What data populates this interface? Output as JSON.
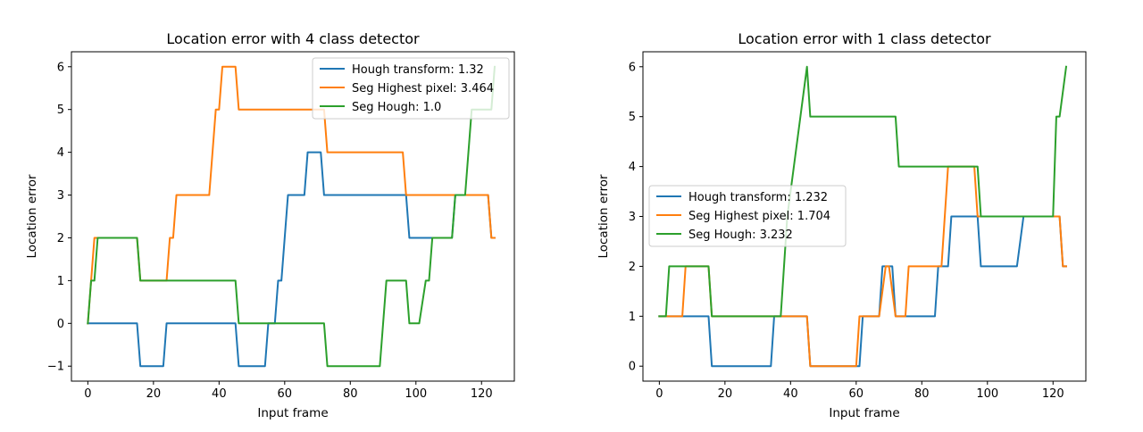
{
  "chart_data": [
    {
      "type": "line",
      "title": "Location error with 4 class detector",
      "xlabel": "Input frame",
      "ylabel": "Location error",
      "xlim": [
        -5,
        130
      ],
      "ylim": [
        -1.35,
        6.35
      ],
      "xticks": [
        0,
        20,
        40,
        60,
        80,
        100,
        120
      ],
      "yticks": [
        -1,
        0,
        1,
        2,
        3,
        4,
        5,
        6
      ],
      "legend_position": "top-right",
      "grid": false,
      "series": [
        {
          "name": "Hough transform: 1.32",
          "color": "#1f77b4",
          "points": [
            [
              0,
              0
            ],
            [
              15,
              0
            ],
            [
              16,
              -1
            ],
            [
              23,
              -1
            ],
            [
              24,
              0
            ],
            [
              45,
              0
            ],
            [
              46,
              -1
            ],
            [
              54,
              -1
            ],
            [
              55,
              0
            ],
            [
              57,
              0
            ],
            [
              58,
              1
            ],
            [
              59,
              1
            ],
            [
              61,
              3
            ],
            [
              66,
              3
            ],
            [
              67,
              4
            ],
            [
              71,
              4
            ],
            [
              72,
              3
            ],
            [
              97,
              3
            ],
            [
              98,
              2
            ],
            [
              104,
              2
            ],
            [
              105,
              2
            ],
            [
              111,
              2
            ],
            [
              112,
              3
            ],
            [
              122,
              3
            ],
            [
              123,
              2
            ],
            [
              124,
              2
            ]
          ]
        },
        {
          "name": "Seg Highest pixel: 3.464",
          "color": "#ff7f0e",
          "points": [
            [
              0,
              0
            ],
            [
              2,
              2
            ],
            [
              15,
              2
            ],
            [
              16,
              1
            ],
            [
              24,
              1
            ],
            [
              25,
              2
            ],
            [
              26,
              2
            ],
            [
              27,
              3
            ],
            [
              37,
              3
            ],
            [
              39,
              5
            ],
            [
              40,
              5
            ],
            [
              41,
              6
            ],
            [
              45,
              6
            ],
            [
              46,
              5
            ],
            [
              72,
              5
            ],
            [
              73,
              4
            ],
            [
              96,
              4
            ],
            [
              97,
              3
            ],
            [
              122,
              3
            ],
            [
              123,
              2
            ],
            [
              124,
              2
            ]
          ]
        },
        {
          "name": "Seg Hough: 1.0",
          "color": "#2ca02c",
          "points": [
            [
              0,
              0
            ],
            [
              1,
              1
            ],
            [
              2,
              1
            ],
            [
              3,
              2
            ],
            [
              15,
              2
            ],
            [
              16,
              1
            ],
            [
              45,
              1
            ],
            [
              46,
              0
            ],
            [
              72,
              0
            ],
            [
              73,
              -1
            ],
            [
              89,
              -1
            ],
            [
              91,
              1
            ],
            [
              97,
              1
            ],
            [
              98,
              0
            ],
            [
              101,
              0
            ],
            [
              103,
              1
            ],
            [
              104,
              1
            ],
            [
              105,
              2
            ],
            [
              111,
              2
            ],
            [
              112,
              3
            ],
            [
              115,
              3
            ],
            [
              117,
              5
            ],
            [
              122,
              5
            ],
            [
              123,
              5
            ],
            [
              124,
              6
            ]
          ]
        }
      ]
    },
    {
      "type": "line",
      "title": "Location error with 1 class detector",
      "xlabel": "Input frame",
      "ylabel": "Location error",
      "xlim": [
        -5,
        130
      ],
      "ylim": [
        -0.3,
        6.3
      ],
      "xticks": [
        0,
        20,
        40,
        60,
        80,
        100,
        120
      ],
      "yticks": [
        0,
        1,
        2,
        3,
        4,
        5,
        6
      ],
      "legend_position": "center-left",
      "grid": false,
      "series": [
        {
          "name": "Hough transform: 1.232",
          "color": "#1f77b4",
          "points": [
            [
              0,
              1
            ],
            [
              15,
              1
            ],
            [
              16,
              0
            ],
            [
              34,
              0
            ],
            [
              35,
              1
            ],
            [
              45,
              1
            ],
            [
              46,
              0
            ],
            [
              61,
              0
            ],
            [
              62,
              1
            ],
            [
              67,
              1
            ],
            [
              68,
              2
            ],
            [
              71,
              2
            ],
            [
              72,
              1
            ],
            [
              84,
              1
            ],
            [
              85,
              2
            ],
            [
              88,
              2
            ],
            [
              89,
              3
            ],
            [
              97,
              3
            ],
            [
              98,
              2
            ],
            [
              109,
              2
            ],
            [
              111,
              3
            ],
            [
              122,
              3
            ],
            [
              123,
              2
            ],
            [
              124,
              2
            ]
          ]
        },
        {
          "name": "Seg Highest pixel: 1.704",
          "color": "#ff7f0e",
          "points": [
            [
              0,
              1
            ],
            [
              7,
              1
            ],
            [
              8,
              2
            ],
            [
              15,
              2
            ],
            [
              16,
              1
            ],
            [
              45,
              1
            ],
            [
              46,
              0
            ],
            [
              60,
              0
            ],
            [
              61,
              1
            ],
            [
              67,
              1
            ],
            [
              69,
              2
            ],
            [
              70,
              2
            ],
            [
              72,
              1
            ],
            [
              75,
              1
            ],
            [
              76,
              2
            ],
            [
              86,
              2
            ],
            [
              88,
              4
            ],
            [
              96,
              4
            ],
            [
              97,
              3
            ],
            [
              122,
              3
            ],
            [
              123,
              2
            ],
            [
              124,
              2
            ]
          ]
        },
        {
          "name": "Seg Hough: 3.232",
          "color": "#2ca02c",
          "points": [
            [
              0,
              1
            ],
            [
              2,
              1
            ],
            [
              3,
              2
            ],
            [
              15,
              2
            ],
            [
              16,
              1
            ],
            [
              37,
              1
            ],
            [
              39,
              3
            ],
            [
              41,
              4
            ],
            [
              45,
              6
            ],
            [
              46,
              5
            ],
            [
              72,
              5
            ],
            [
              73,
              4
            ],
            [
              97,
              4
            ],
            [
              98,
              3
            ],
            [
              120,
              3
            ],
            [
              121,
              5
            ],
            [
              122,
              5
            ],
            [
              124,
              6
            ]
          ]
        }
      ]
    }
  ]
}
